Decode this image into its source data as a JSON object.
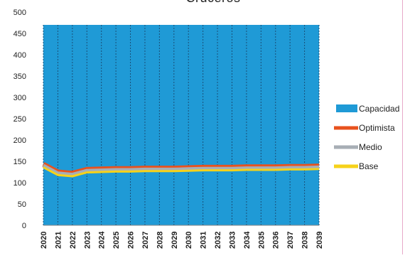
{
  "chart_data": {
    "type": "area",
    "title": "Cruceros",
    "xlabel": "",
    "ylabel": "",
    "ylim": [
      0,
      500
    ],
    "yticks": [
      0,
      50,
      100,
      150,
      200,
      250,
      300,
      350,
      400,
      450,
      500
    ],
    "categories": [
      "2020",
      "2021",
      "2022",
      "2023",
      "2024",
      "2025",
      "2026",
      "2027",
      "2028",
      "2029",
      "2030",
      "2031",
      "2032",
      "2033",
      "2034",
      "2035",
      "2036",
      "2037",
      "2038",
      "2039"
    ],
    "grid": "vertical",
    "legend_position": "right",
    "series": [
      {
        "name": "Capacidad",
        "kind": "area",
        "color": "#1f9ad6",
        "values": [
          470,
          470,
          470,
          470,
          470,
          470,
          470,
          470,
          470,
          470,
          470,
          470,
          470,
          470,
          470,
          470,
          470,
          470,
          470,
          470
        ]
      },
      {
        "name": "Optimista",
        "kind": "line",
        "color": "#e8521e",
        "values": [
          143,
          125,
          122,
          131,
          132,
          133,
          133,
          134,
          134,
          134,
          135,
          136,
          136,
          136,
          137,
          137,
          137,
          138,
          138,
          139
        ]
      },
      {
        "name": "Medio",
        "kind": "line",
        "color": "#a7aeb5",
        "values": [
          140,
          122,
          119,
          128,
          129,
          130,
          130,
          131,
          131,
          131,
          132,
          133,
          133,
          133,
          134,
          134,
          134,
          135,
          135,
          136
        ]
      },
      {
        "name": "Base",
        "kind": "line",
        "color": "#f6d21a",
        "values": [
          136,
          118,
          115,
          124,
          125,
          126,
          126,
          127,
          127,
          127,
          128,
          129,
          129,
          129,
          130,
          130,
          130,
          131,
          131,
          132
        ]
      }
    ]
  }
}
